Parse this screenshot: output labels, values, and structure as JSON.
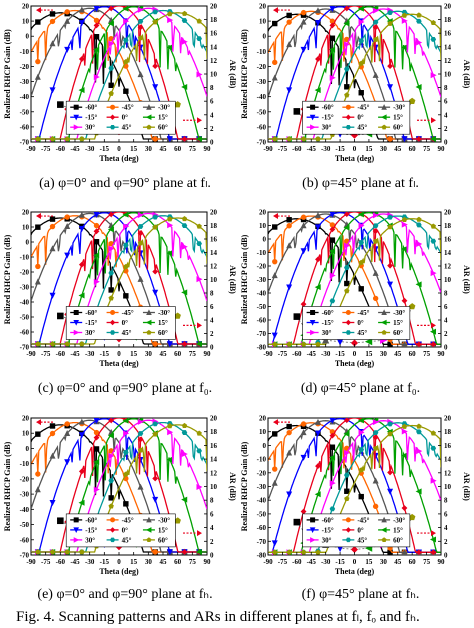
{
  "figure": {
    "caption": "Fig. 4.   Scanning patterns and ARs in different planes at fₗ, fₒ and fₕ."
  },
  "colors": {
    "-60": "#000000",
    "-45": "#ff6600",
    "-30": "#555555",
    "-15": "#0000ff",
    "0": "#e8001c",
    "15": "#00a000",
    "30": "#ff00ff",
    "45": "#009999",
    "60": "#999900"
  },
  "chart_data": [
    {
      "type": "line",
      "panel": "(a)",
      "subtitle": "(a) φ=0° and φ=90° plane at fₗ.",
      "xlabel": "Theta (deg)",
      "ylabel_left": "Realized RHCP Gain (dB)",
      "ylabel_right": "AR (dB)",
      "xlim": [
        -90,
        90
      ],
      "ylim_left": [
        -70,
        20
      ],
      "ylim_right": [
        0,
        20
      ],
      "legend": [
        "-60°",
        "-45°",
        "-30°",
        "-15°",
        "0°",
        "15°",
        "30°",
        "45°",
        "60°"
      ],
      "scan_angles": [
        -60,
        -45,
        -30,
        -15,
        0,
        15,
        30,
        45,
        60
      ],
      "peak_gain": [
        15.5,
        17,
        18.5,
        19.5,
        20,
        19.5,
        18.5,
        17,
        15.5
      ],
      "ar_scan_angles": [
        -60,
        -45,
        -30,
        -15,
        0,
        15,
        30,
        45,
        60
      ],
      "ar_values": [
        5.5,
        4.6,
        3.6,
        2.3,
        1.5,
        2.3,
        3.6,
        4.6,
        5.5
      ]
    },
    {
      "type": "line",
      "panel": "(b)",
      "subtitle": "(b) φ=45° plane at fₗ.",
      "xlabel": "Theta (deg)",
      "ylabel_left": "Realized RHCP Gain (dB)",
      "ylabel_right": "AR (dB)",
      "xlim": [
        -90,
        90
      ],
      "ylim_left": [
        -70,
        20
      ],
      "ylim_right": [
        0,
        20
      ],
      "legend": [
        "-60°",
        "-45°",
        "-30°",
        "-15°",
        "0°",
        "15°",
        "30°",
        "45°",
        "60°"
      ],
      "scan_angles": [
        -60,
        -45,
        -30,
        -15,
        0,
        15,
        30,
        45,
        60
      ],
      "peak_gain": [
        14.5,
        16.5,
        18,
        19.5,
        20,
        19.5,
        18,
        16.5,
        14.5
      ],
      "ar_scan_angles": [
        -60,
        -45,
        -30,
        -15,
        0,
        15,
        30,
        45,
        60
      ],
      "ar_values": [
        4.5,
        2.5,
        1.8,
        1.2,
        1.0,
        1.2,
        1.8,
        2.5,
        6.0
      ]
    },
    {
      "type": "line",
      "panel": "(c)",
      "subtitle": "(c) φ=0° and φ=90° plane at f₀.",
      "xlabel": "Theta (deg)",
      "ylabel_left": "Realized RHCP Gain (dB)",
      "ylabel_right": "AR (dB)",
      "xlim": [
        -90,
        90
      ],
      "ylim_left": [
        -70,
        20
      ],
      "ylim_right": [
        0,
        20
      ],
      "legend": [
        "-60°",
        "-45°",
        "-30°",
        "-15°",
        "0°",
        "15°",
        "30°",
        "45°",
        "60°"
      ],
      "scan_angles": [
        -60,
        -45,
        -30,
        -15,
        0,
        15,
        30,
        45,
        60
      ],
      "peak_gain": [
        16,
        17.5,
        19,
        19.5,
        20,
        19.5,
        19,
        17.5,
        16
      ],
      "ar_scan_angles": [
        -60,
        -45,
        -30,
        -15,
        0,
        15,
        30,
        45,
        60
      ],
      "ar_values": [
        4.6,
        3.8,
        2.6,
        1.5,
        1.2,
        1.5,
        2.6,
        3.8,
        4.6
      ]
    },
    {
      "type": "line",
      "panel": "(d)",
      "subtitle": "(d) φ=45° plane at f₀.",
      "xlabel": "Theta (deg)",
      "ylabel_left": "Realized RHCP Gain (dB)",
      "ylabel_right": "AR (dB)",
      "xlim": [
        -90,
        90
      ],
      "ylim_left": [
        -80,
        20
      ],
      "ylim_right": [
        0,
        20
      ],
      "legend": [
        "-60°",
        "-45°",
        "-30°",
        "-15°",
        "0°",
        "15°",
        "30°",
        "45°",
        "60°"
      ],
      "scan_angles": [
        -60,
        -45,
        -30,
        -15,
        0,
        15,
        30,
        45,
        60
      ],
      "peak_gain": [
        15,
        17,
        18.5,
        19.5,
        20,
        19.5,
        18.5,
        17,
        15
      ],
      "ar_scan_angles": [
        -60,
        -45,
        -30,
        -15,
        0,
        15,
        30,
        45,
        60
      ],
      "ar_values": [
        4.5,
        1.5,
        1.0,
        0.8,
        0.6,
        0.8,
        1.0,
        1.5,
        6.0
      ]
    },
    {
      "type": "line",
      "panel": "(e)",
      "subtitle": "(e) φ=0° and φ=90° plane at fₕ.",
      "xlabel": "Theta (deg)",
      "ylabel_left": "Realized RHCP Gain (dB)",
      "ylabel_right": "AR (dB)",
      "xlim": [
        -90,
        90
      ],
      "ylim_left": [
        -70,
        20
      ],
      "ylim_right": [
        0,
        20
      ],
      "legend": [
        "-60°",
        "-45°",
        "-30°",
        "-15°",
        "0°",
        "15°",
        "30°",
        "45°",
        "60°"
      ],
      "scan_angles": [
        -60,
        -45,
        -30,
        -15,
        0,
        15,
        30,
        45,
        60
      ],
      "peak_gain": [
        15.5,
        17,
        18.5,
        19.5,
        20,
        19.5,
        18.5,
        17,
        15.5
      ],
      "ar_scan_angles": [
        -60,
        -45,
        -30,
        -15,
        0,
        15,
        30,
        45,
        60
      ],
      "ar_values": [
        5.0,
        3.8,
        2.6,
        1.6,
        1.2,
        1.6,
        2.6,
        3.8,
        5.0
      ]
    },
    {
      "type": "line",
      "panel": "(f)",
      "subtitle": "(f) φ=45° plane at fₕ.",
      "xlabel": "Theta (deg)",
      "ylabel_left": "Realized RHCP Gain (dB)",
      "ylabel_right": "AR (dB)",
      "xlim": [
        -90,
        90
      ],
      "ylim_left": [
        -80,
        20
      ],
      "ylim_right": [
        0,
        20
      ],
      "legend": [
        "-60°",
        "-45°",
        "-30°",
        "-15°",
        "0°",
        "15°",
        "30°",
        "45°",
        "60°"
      ],
      "scan_angles": [
        -60,
        -45,
        -30,
        -15,
        0,
        15,
        30,
        45,
        60
      ],
      "peak_gain": [
        14.5,
        16.5,
        18,
        19.5,
        20,
        19.5,
        18,
        16.5,
        14.5
      ],
      "ar_scan_angles": [
        -60,
        -45,
        -30,
        -15,
        0,
        15,
        30,
        45,
        60
      ],
      "ar_values": [
        4.8,
        2.0,
        1.5,
        1.0,
        0.8,
        1.0,
        1.5,
        2.0,
        5.5
      ]
    }
  ]
}
